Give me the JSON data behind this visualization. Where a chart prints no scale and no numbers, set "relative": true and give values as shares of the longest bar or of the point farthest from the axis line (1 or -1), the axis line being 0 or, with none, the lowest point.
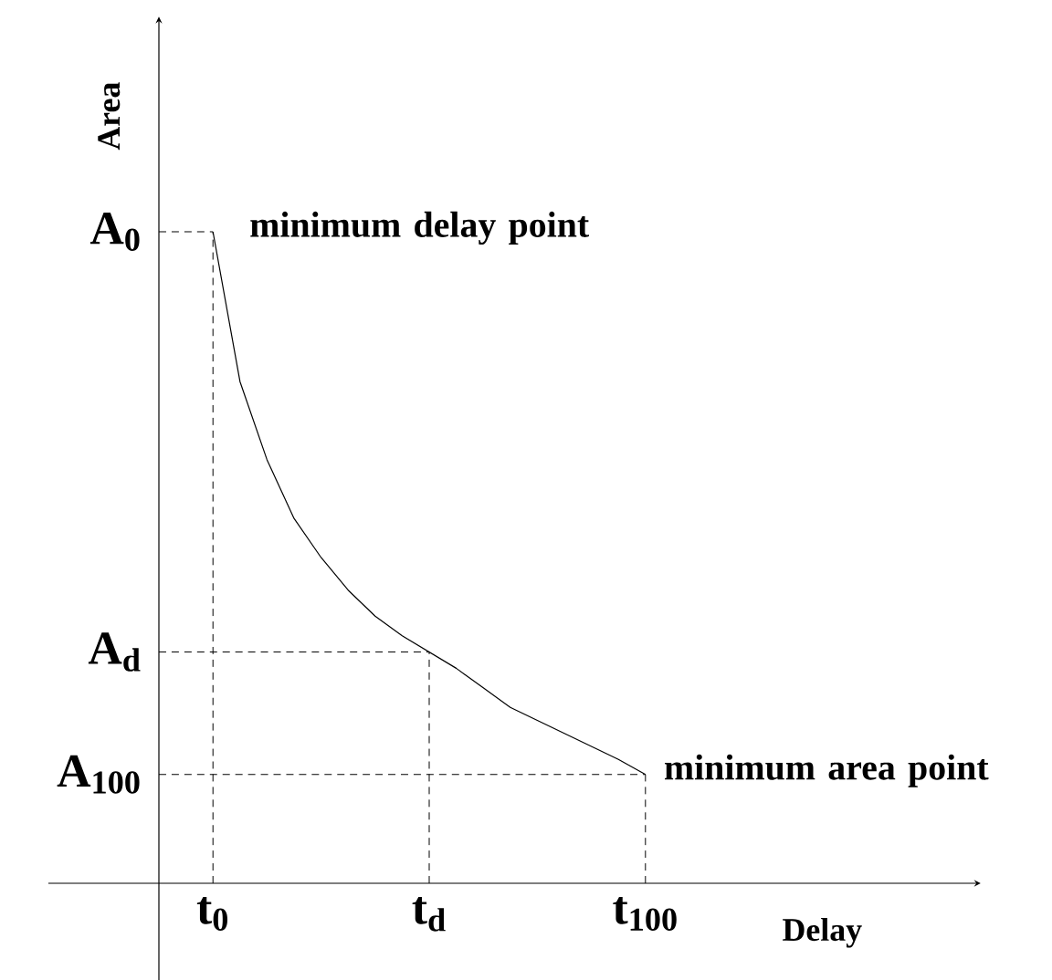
{
  "chart_data": {
    "type": "line",
    "relative": true,
    "xlabel": "Delay",
    "ylabel": "Area",
    "categories": [
      "t$_{0}$",
      null,
      null,
      null,
      null,
      null,
      null,
      null,
      "t$_{d}$",
      null,
      null,
      null,
      null,
      null,
      null,
      null,
      "t$_{100}$"
    ],
    "series": [
      {
        "color": "#000000",
        "values": [
          1.0,
          0.77,
          0.65,
          0.56,
          0.5,
          0.45,
          0.41,
          0.38,
          0.355,
          0.33,
          0.3,
          0.27,
          0.25,
          0.23,
          0.21,
          0.19,
          0.167
        ]
      }
    ],
    "ref_lines": [
      {
        "axis": "y",
        "value": 1.0,
        "label": "A$_{0}$",
        "line_style": "dashed"
      },
      {
        "axis": "y",
        "value": 0.355,
        "label": "A$_{d}$",
        "line_style": "dashed"
      },
      {
        "axis": "y",
        "value": 0.167,
        "label": "A$_{100}$",
        "line_style": "dashed"
      },
      {
        "axis": "x",
        "value": "t$_{0}$",
        "line_style": "dashed"
      },
      {
        "axis": "x",
        "value": "t$_{d}$",
        "line_style": "dashed"
      },
      {
        "axis": "x",
        "value": "t$_{100}$",
        "line_style": "dashed"
      }
    ],
    "annotations": [
      {
        "text": "minimum delay point",
        "x": "t$_{0}$",
        "y": 1.0
      },
      {
        "text": "minimum area point",
        "x": "t$_{100}$",
        "y": 0.167
      }
    ]
  }
}
